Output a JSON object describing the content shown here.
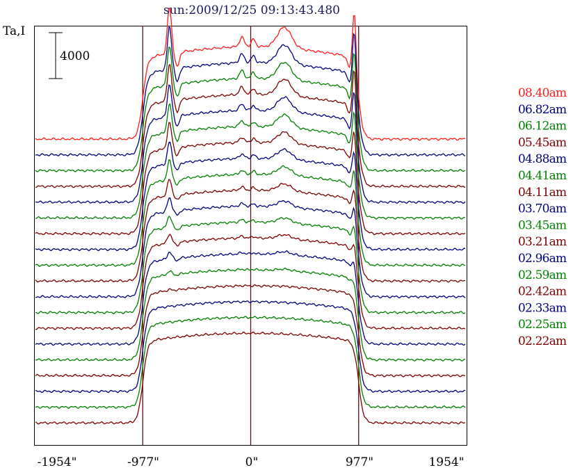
{
  "chart_data": {
    "type": "line",
    "title": "sun:2009/12/25 09:13:43.480",
    "ylabel": "Ta,I",
    "scale_bar_label": "4000",
    "scale_bar_value": 4000,
    "xticks": [
      {
        "value": -1954,
        "label": "-1954\""
      },
      {
        "value": -977,
        "label": "-977\""
      },
      {
        "value": 0,
        "label": "0\""
      },
      {
        "value": 977,
        "label": "977\""
      },
      {
        "value": 1954,
        "label": "1954\""
      }
    ],
    "xlim": [
      -1954,
      1954
    ],
    "vlines": [
      -977,
      0,
      977
    ],
    "grid": false,
    "legend_position": "right",
    "colors": {
      "red": "#ff1a1a",
      "blue": "#00007f",
      "green": "#008000",
      "brown": "#7f0000",
      "frame": "#000000",
      "vline": "#5a1010"
    },
    "series": [
      {
        "name": "08.40am",
        "color": "#ff1a1a",
        "limb": 1.0
      },
      {
        "name": "06.82am",
        "color": "#00007f",
        "limb": 0.92
      },
      {
        "name": "06.12am",
        "color": "#008000",
        "limb": 0.85
      },
      {
        "name": "05.45am",
        "color": "#7f0000",
        "limb": 0.8
      },
      {
        "name": "04.88am",
        "color": "#00007f",
        "limb": 0.7
      },
      {
        "name": "04.41am",
        "color": "#008000",
        "limb": 0.62
      },
      {
        "name": "04.11am",
        "color": "#7f0000",
        "limb": 0.55
      },
      {
        "name": "03.70am",
        "color": "#00007f",
        "limb": 0.48
      },
      {
        "name": "03.45am",
        "color": "#008000",
        "limb": 0.42
      },
      {
        "name": "03.21am",
        "color": "#7f0000",
        "limb": 0.36
      },
      {
        "name": "02.96am",
        "color": "#00007f",
        "limb": 0.3
      },
      {
        "name": "02.59am",
        "color": "#008000",
        "limb": 0.25
      },
      {
        "name": "02.42am",
        "color": "#7f0000",
        "limb": 0.2
      },
      {
        "name": "02.33am",
        "color": "#00007f",
        "limb": 0.15
      },
      {
        "name": "02.25am",
        "color": "#008000",
        "limb": 0.08
      },
      {
        "name": "02.22am",
        "color": "#7f0000",
        "limb": 0.02
      },
      {
        "name": "",
        "color": "#00007f",
        "limb": 0.0
      },
      {
        "name": "",
        "color": "#008000",
        "limb": 0.0
      },
      {
        "name": "",
        "color": "#7f0000",
        "limb": 0.0
      }
    ]
  }
}
